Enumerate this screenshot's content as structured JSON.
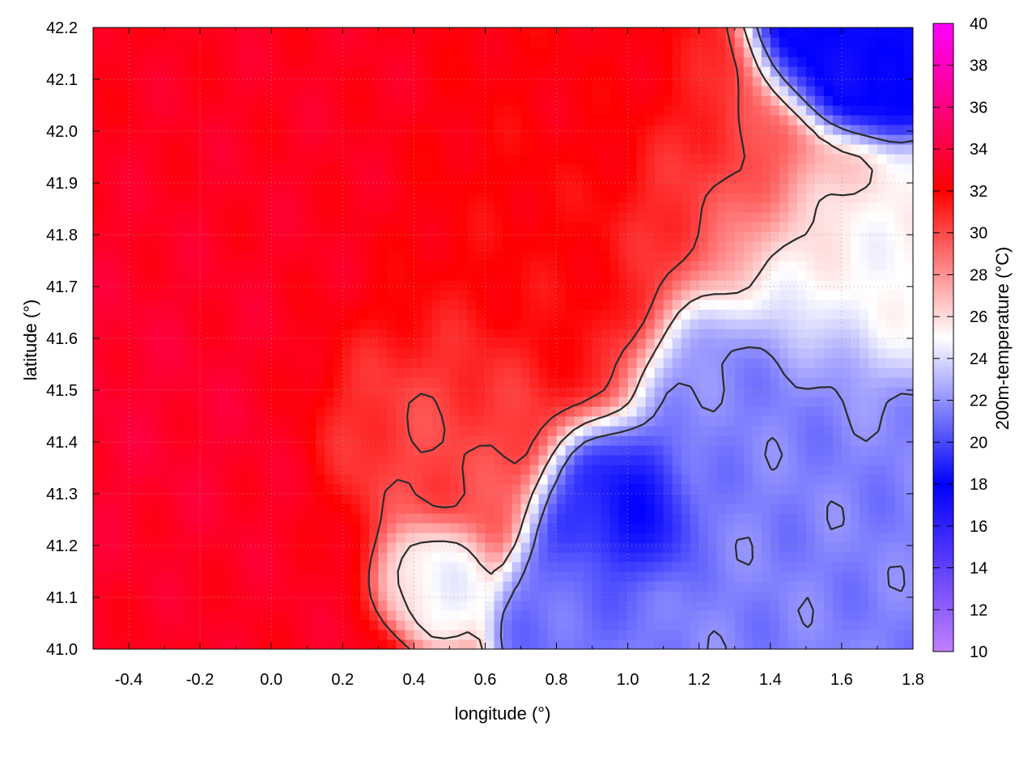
{
  "chart_data": {
    "type": "heatmap",
    "title": "",
    "xlabel": "longitude (°)",
    "ylabel": "latitude (°)",
    "colorbar_label": "200m-temperature (°C)",
    "xlim": [
      -0.5,
      1.8
    ],
    "ylim": [
      41.0,
      42.2
    ],
    "zlim": [
      10,
      40
    ],
    "x_ticks": [
      -0.4,
      -0.2,
      0.0,
      0.2,
      0.4,
      0.6,
      0.8,
      1.0,
      1.2,
      1.4,
      1.6,
      1.8
    ],
    "x_tick_labels": [
      "-0.4",
      "-0.2",
      "0.0",
      "0.2",
      "0.4",
      "0.6",
      "0.8",
      "1.0",
      "1.2",
      "1.4",
      "1.6",
      "1.8"
    ],
    "y_ticks": [
      41.0,
      41.1,
      41.2,
      41.3,
      41.4,
      41.5,
      41.6,
      41.7,
      41.8,
      41.9,
      42.0,
      42.1,
      42.2
    ],
    "y_tick_labels": [
      "41.0",
      "41.1",
      "41.2",
      "41.3",
      "41.4",
      "41.5",
      "41.6",
      "41.7",
      "41.8",
      "41.9",
      "42.0",
      "42.1",
      "42.2"
    ],
    "colorbar_ticks": [
      10,
      12,
      14,
      16,
      18,
      20,
      22,
      24,
      26,
      28,
      30,
      32,
      34,
      36,
      38,
      40
    ],
    "colorbar_tick_labels": [
      "10",
      "12",
      "14",
      "16",
      "18",
      "20",
      "22",
      "24",
      "26",
      "28",
      "30",
      "32",
      "34",
      "36",
      "38",
      "40"
    ],
    "colormap": [
      {
        "value": 10,
        "color": "#c080ff"
      },
      {
        "value": 18,
        "color": "#0000ff"
      },
      {
        "value": 25,
        "color": "#ffffff"
      },
      {
        "value": 32,
        "color": "#ff0000"
      },
      {
        "value": 40,
        "color": "#ff00ff"
      }
    ],
    "grid": true,
    "contours": true,
    "field_sources": [
      {
        "lon": -0.35,
        "lat": 41.4,
        "temp": 33.5,
        "spread": 0.35
      },
      {
        "lon": 0.05,
        "lat": 41.85,
        "temp": 33.0,
        "spread": 0.35
      },
      {
        "lon": -0.2,
        "lat": 41.1,
        "temp": 33.0,
        "spread": 0.3
      },
      {
        "lon": 0.65,
        "lat": 41.75,
        "temp": 32.0,
        "spread": 0.3
      },
      {
        "lon": 0.95,
        "lat": 42.05,
        "temp": 32.5,
        "spread": 0.18
      },
      {
        "lon": 1.25,
        "lat": 41.9,
        "temp": 30.5,
        "spread": 0.22
      },
      {
        "lon": 0.45,
        "lat": 41.45,
        "temp": 30.0,
        "spread": 0.25
      },
      {
        "lon": 0.95,
        "lat": 41.28,
        "temp": 18.5,
        "spread": 0.14
      },
      {
        "lon": 1.35,
        "lat": 41.5,
        "temp": 21.5,
        "spread": 0.2
      },
      {
        "lon": 1.6,
        "lat": 41.05,
        "temp": 21.5,
        "spread": 0.3
      },
      {
        "lon": 1.6,
        "lat": 42.15,
        "temp": 17.5,
        "spread": 0.14
      },
      {
        "lon": 0.85,
        "lat": 41.1,
        "temp": 21.0,
        "spread": 0.12
      },
      {
        "lon": 1.5,
        "lat": 41.75,
        "temp": 25.0,
        "spread": 0.2
      },
      {
        "lon": 0.45,
        "lat": 41.15,
        "temp": 24.5,
        "spread": 0.1
      }
    ]
  }
}
